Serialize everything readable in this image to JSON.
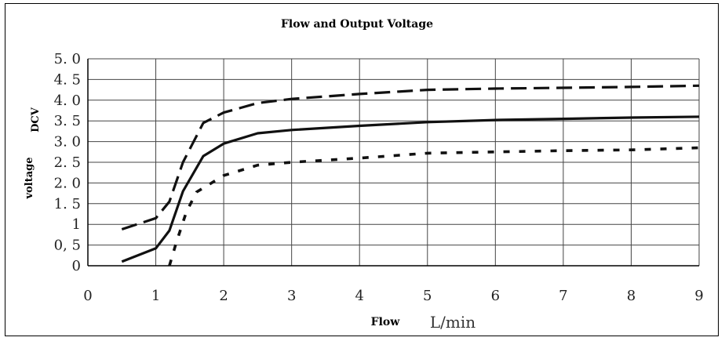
{
  "chart_data": {
    "type": "line",
    "title": "Flow and Output Voltage",
    "xlabel": "Flow",
    "xunit": "L/min",
    "ylabel": "voltage",
    "yunit": "DCV",
    "xlim": [
      0,
      9
    ],
    "ylim": [
      0,
      5
    ],
    "grid": true,
    "x_ticks": [
      "0",
      "1",
      "2",
      "3",
      "4",
      "5",
      "6",
      "7",
      "8",
      "9"
    ],
    "y_ticks": [
      {
        "v": 0,
        "label": "0"
      },
      {
        "v": 0.5,
        "label": "0, 5"
      },
      {
        "v": 1,
        "label": "1"
      },
      {
        "v": 1.5,
        "label": "1. 5"
      },
      {
        "v": 2,
        "label": "2. 0"
      },
      {
        "v": 2.5,
        "label": "2. 5"
      },
      {
        "v": 3,
        "label": "3. 0"
      },
      {
        "v": 3.5,
        "label": "3. 5"
      },
      {
        "v": 4,
        "label": "4. 0"
      },
      {
        "v": 4.5,
        "label": "4. 5"
      },
      {
        "v": 5,
        "label": "5. 0"
      }
    ],
    "series": [
      {
        "style": "dashed",
        "x": [
          0.5,
          1.0,
          1.2,
          1.4,
          1.7,
          2.0,
          2.5,
          3.0,
          4.0,
          5.0,
          6.0,
          7.0,
          8.0,
          9.0
        ],
        "y": [
          0.88,
          1.15,
          1.55,
          2.5,
          3.45,
          3.7,
          3.93,
          4.03,
          4.15,
          4.25,
          4.28,
          4.3,
          4.32,
          4.35
        ]
      },
      {
        "style": "solid",
        "x": [
          0.5,
          1.0,
          1.2,
          1.4,
          1.7,
          2.0,
          2.5,
          3.0,
          4.0,
          5.0,
          6.0,
          7.0,
          8.0,
          9.0
        ],
        "y": [
          0.1,
          0.42,
          0.85,
          1.8,
          2.65,
          2.95,
          3.2,
          3.28,
          3.38,
          3.47,
          3.52,
          3.55,
          3.58,
          3.6
        ]
      },
      {
        "style": "dotted",
        "x": [
          1.2,
          1.3,
          1.45,
          1.6,
          1.8,
          2.0,
          2.5,
          3.0,
          4.0,
          5.0,
          6.0,
          7.0,
          8.0,
          9.0
        ],
        "y": [
          0.0,
          0.55,
          1.3,
          1.78,
          1.98,
          2.18,
          2.43,
          2.5,
          2.6,
          2.72,
          2.75,
          2.78,
          2.8,
          2.85
        ]
      }
    ]
  }
}
